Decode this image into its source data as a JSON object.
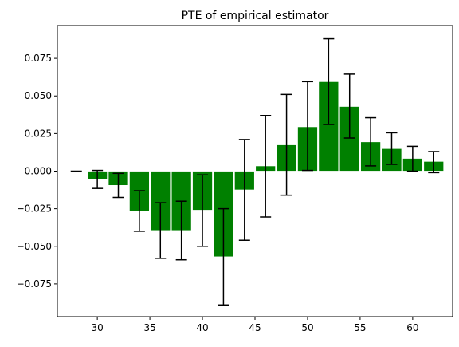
{
  "chart_data": {
    "type": "bar",
    "title": "PTE of empirical estimator",
    "xlabel": "",
    "ylabel": "",
    "xlim": [
      26.2,
      63.8
    ],
    "ylim": [
      -0.0968,
      0.0968
    ],
    "grid": false,
    "bar_width": 1.9,
    "colors": {
      "bar": "#008000",
      "error": "#000000"
    },
    "xticks": [
      30,
      35,
      40,
      45,
      50,
      55,
      60
    ],
    "xtick_labels": [
      "30",
      "35",
      "40",
      "45",
      "50",
      "55",
      "60"
    ],
    "yticks": [
      -0.075,
      -0.05,
      -0.025,
      0.0,
      0.025,
      0.05,
      0.075
    ],
    "ytick_labels": [
      "−0.075",
      "−0.050",
      "−0.025",
      "0.000",
      "0.025",
      "0.050",
      "0.075"
    ],
    "x": [
      28,
      30,
      32,
      34,
      36,
      38,
      40,
      42,
      44,
      46,
      48,
      50,
      52,
      54,
      56,
      58,
      60,
      62
    ],
    "values": [
      0.0,
      -0.0055,
      -0.0095,
      -0.0265,
      -0.0395,
      -0.0395,
      -0.026,
      -0.057,
      -0.0125,
      0.0035,
      0.0175,
      0.0295,
      0.0595,
      0.043,
      0.0195,
      0.015,
      0.0085,
      0.0065
    ],
    "error_low": [
      0.0,
      -0.0115,
      -0.0175,
      -0.04,
      -0.058,
      -0.059,
      -0.05,
      -0.089,
      -0.046,
      -0.0305,
      -0.016,
      0.0005,
      0.031,
      0.022,
      0.0035,
      0.0045,
      0.0,
      -0.001
    ],
    "error_high": [
      0.0,
      0.0005,
      -0.0015,
      -0.013,
      -0.021,
      -0.02,
      -0.0025,
      -0.025,
      0.021,
      0.037,
      0.051,
      0.0595,
      0.088,
      0.0645,
      0.0355,
      0.0255,
      0.0165,
      0.013
    ]
  }
}
